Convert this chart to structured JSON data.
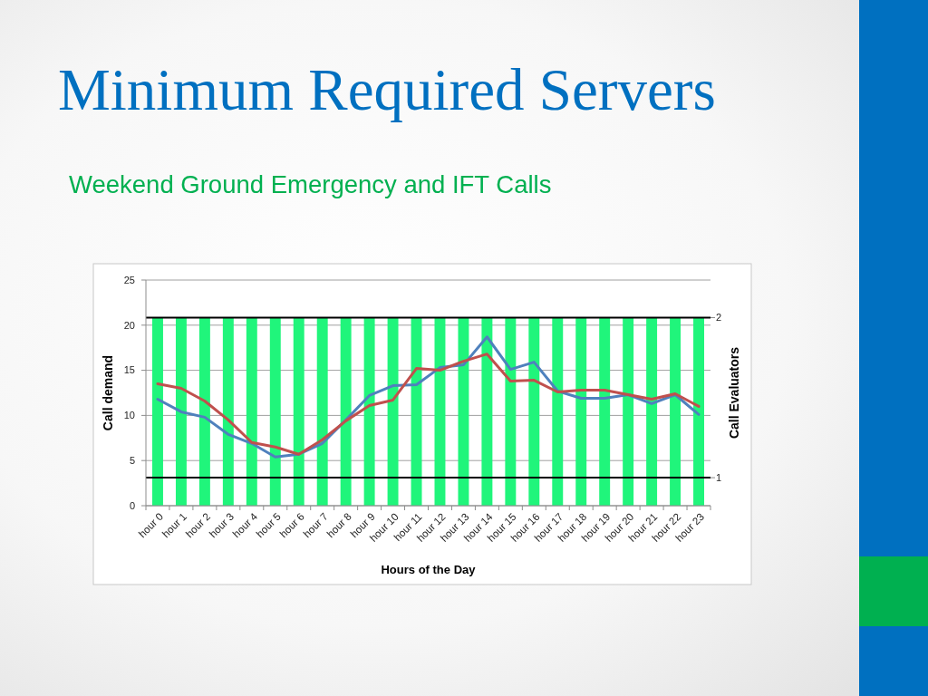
{
  "chart_data": {
    "type": "line",
    "title": "Minimum Required Servers",
    "subtitle": "Weekend Ground Emergency and IFT Calls",
    "xlabel": "Hours of the Day",
    "ylabel": "Call demand",
    "y2label": "Call Evaluators",
    "categories": [
      "hour 0",
      "hour 1",
      "hour 2",
      "hour 3",
      "hour 4",
      "hour 5",
      "hour 6",
      "hour 7",
      "hour 8",
      "hour 9",
      "hour 10",
      "hour 11",
      "hour 12",
      "hour 13",
      "hour 14",
      "hour 15",
      "hour 16",
      "hour 17",
      "hour 18",
      "hour 19",
      "hour 20",
      "hour 21",
      "hour 22",
      "hour 23"
    ],
    "series": [
      {
        "type": "bar",
        "axis": "y2",
        "color": "#20f57b",
        "values": [
          2,
          2,
          2,
          2,
          2,
          2,
          2,
          2,
          2,
          2,
          2,
          2,
          2,
          2,
          2,
          2,
          2,
          2,
          2,
          2,
          2,
          2,
          2,
          2
        ]
      },
      {
        "color": "#4f81bd",
        "values": [
          11.8,
          10.4,
          9.8,
          7.9,
          6.9,
          5.4,
          5.7,
          6.9,
          9.5,
          12.2,
          13.3,
          13.4,
          15.3,
          15.6,
          18.7,
          15.1,
          15.9,
          12.7,
          11.9,
          11.9,
          12.3,
          11.3,
          12.3,
          10.1
        ]
      },
      {
        "color": "#c0504d",
        "values": [
          13.5,
          13.0,
          11.6,
          9.5,
          7.0,
          6.5,
          5.7,
          7.3,
          9.4,
          11.1,
          11.7,
          15.2,
          15.0,
          16.0,
          16.8,
          13.8,
          13.9,
          12.6,
          12.8,
          12.8,
          12.3,
          11.8,
          12.4,
          11.0
        ]
      }
    ],
    "ylim": [
      0,
      25
    ],
    "yticks": [
      0,
      5,
      10,
      15,
      20,
      25
    ],
    "y2lim": [
      0.825,
      2.235
    ],
    "y2ticks": [
      1,
      2
    ],
    "grid": "y"
  }
}
